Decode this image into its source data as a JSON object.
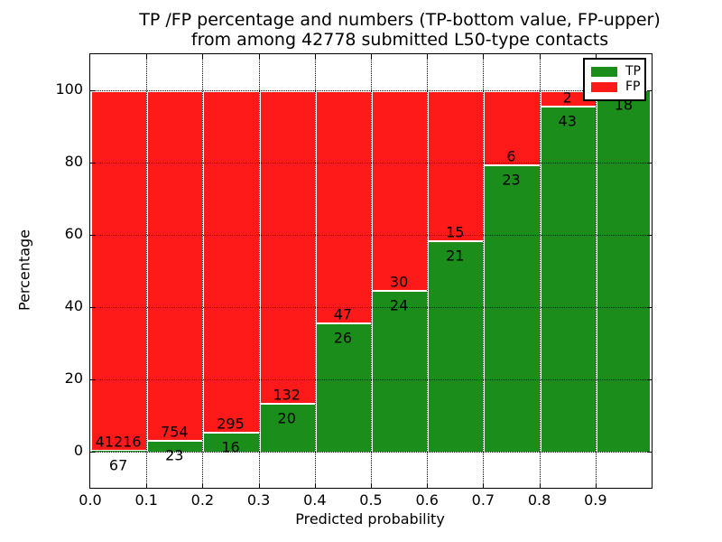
{
  "title": {
    "line1": "TP /FP percentage and numbers (TP-bottom value, FP-upper)",
    "line2": "from among 42778 submitted L50-type contacts"
  },
  "axes": {
    "xlabel": "Predicted probability",
    "ylabel": "Percentage",
    "x_tick_labels": [
      "0.0",
      "0.1",
      "0.2",
      "0.3",
      "0.4",
      "0.5",
      "0.6",
      "0.7",
      "0.8",
      "0.9"
    ],
    "y_tick_labels": [
      "0",
      "20",
      "40",
      "60",
      "80",
      "100"
    ],
    "y_tick_values": [
      0,
      20,
      40,
      60,
      80,
      100
    ],
    "x_tick_values": [
      0.0,
      0.1,
      0.2,
      0.3,
      0.4,
      0.5,
      0.6,
      0.7,
      0.8,
      0.9
    ]
  },
  "legend": {
    "items": [
      {
        "label": "TP",
        "color": "#1a8d1a"
      },
      {
        "label": "FP",
        "color": "#ff1a1a"
      }
    ]
  },
  "colors": {
    "tp": "#1a8d1a",
    "fp": "#ff1a1a",
    "bar_edge": "#ffffff",
    "grid": "#000000",
    "background": "#ffffff"
  },
  "chart_data": {
    "type": "bar",
    "stacked": true,
    "normalized": "each bin totals 100%",
    "title": "TP /FP percentage and numbers (TP-bottom value, FP-upper) from among 42778 submitted L50-type contacts",
    "total_submitted": 42778,
    "xlabel": "Predicted probability",
    "ylabel": "Percentage",
    "xlim": [
      0.0,
      1.0
    ],
    "ylim": [
      -10,
      110
    ],
    "bin_width": 0.1,
    "grid": "dotted, both axes",
    "legend_position": "upper right",
    "series_order": [
      "TP (green, bottom)",
      "FP (red, upper)"
    ],
    "bins": [
      {
        "x_start": 0.0,
        "x_end": 0.1,
        "tp_count": 67,
        "fp_count": 41216,
        "tp_pct": 0.16
      },
      {
        "x_start": 0.1,
        "x_end": 0.2,
        "tp_count": 23,
        "fp_count": 754,
        "tp_pct": 2.96
      },
      {
        "x_start": 0.2,
        "x_end": 0.3,
        "tp_count": 16,
        "fp_count": 295,
        "tp_pct": 5.14
      },
      {
        "x_start": 0.3,
        "x_end": 0.4,
        "tp_count": 20,
        "fp_count": 132,
        "tp_pct": 13.16
      },
      {
        "x_start": 0.4,
        "x_end": 0.5,
        "tp_count": 26,
        "fp_count": 47,
        "tp_pct": 35.62
      },
      {
        "x_start": 0.5,
        "x_end": 0.6,
        "tp_count": 24,
        "fp_count": 30,
        "tp_pct": 44.44
      },
      {
        "x_start": 0.6,
        "x_end": 0.7,
        "tp_count": 21,
        "fp_count": 15,
        "tp_pct": 58.33
      },
      {
        "x_start": 0.7,
        "x_end": 0.8,
        "tp_count": 23,
        "fp_count": 6,
        "tp_pct": 79.31
      },
      {
        "x_start": 0.8,
        "x_end": 0.9,
        "tp_count": 43,
        "fp_count": 2,
        "tp_pct": 95.56
      },
      {
        "x_start": 0.9,
        "x_end": 1.0,
        "tp_count": 18,
        "fp_count": null,
        "tp_pct": 100.0
      }
    ]
  }
}
